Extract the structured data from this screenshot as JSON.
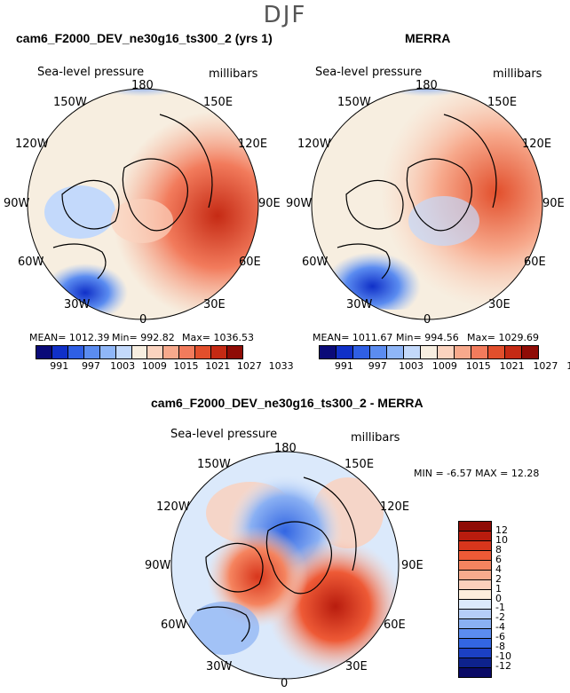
{
  "season": "DJF",
  "panel1": {
    "title": "cam6_F2000_DEV_ne30g16_ts300_2 (yrs 1)",
    "variable": "Sea-level pressure",
    "units": "millibars",
    "mean": "MEAN= 1012.39",
    "min": "Min= 992.82",
    "max": "Max= 1036.53"
  },
  "panel2": {
    "title": "MERRA",
    "variable": "Sea-level pressure",
    "units": "millibars",
    "mean": "MEAN= 1011.67",
    "min": "Min= 994.56",
    "max": "Max= 1029.69"
  },
  "panel3": {
    "title": "cam6_F2000_DEV_ne30g16_ts300_2 - MERRA",
    "variable": "Sea-level pressure",
    "units": "millibars",
    "minmax": "MIN =   -6.57  MAX =   12.28"
  },
  "lon_labels": [
    "180",
    "150E",
    "120E",
    "90E",
    "60E",
    "30E",
    "0",
    "30W",
    "60W",
    "90W",
    "120W",
    "150W"
  ],
  "colorbar_top": {
    "ticks": [
      "991",
      "997",
      "1003",
      "1009",
      "1015",
      "1021",
      "1027",
      "1033"
    ],
    "colors": [
      "#0a0a78",
      "#1030c8",
      "#2f5fe4",
      "#5b8cf0",
      "#8fb6f7",
      "#c3d9fb",
      "#f7eee0",
      "#fbd3bf",
      "#f7a98c",
      "#f27b5c",
      "#e24f2c",
      "#c52a14",
      "#8f0c06"
    ]
  },
  "colorbar_diff": {
    "ticks": [
      "12",
      "10",
      "8",
      "6",
      "4",
      "2",
      "1",
      "0",
      "-1",
      "-2",
      "-4",
      "-6",
      "-8",
      "-10",
      "-12"
    ],
    "colors": [
      "#8f0c06",
      "#b81c0e",
      "#d8361c",
      "#ee5a36",
      "#f5845f",
      "#f8ab8d",
      "#fbd0bc",
      "#fdeedd",
      "#dbe9fb",
      "#b5cdf8",
      "#8ab0f3",
      "#5b8cf0",
      "#3366e2",
      "#1b40c4",
      "#0e228c",
      "#0a0a66"
    ]
  }
}
